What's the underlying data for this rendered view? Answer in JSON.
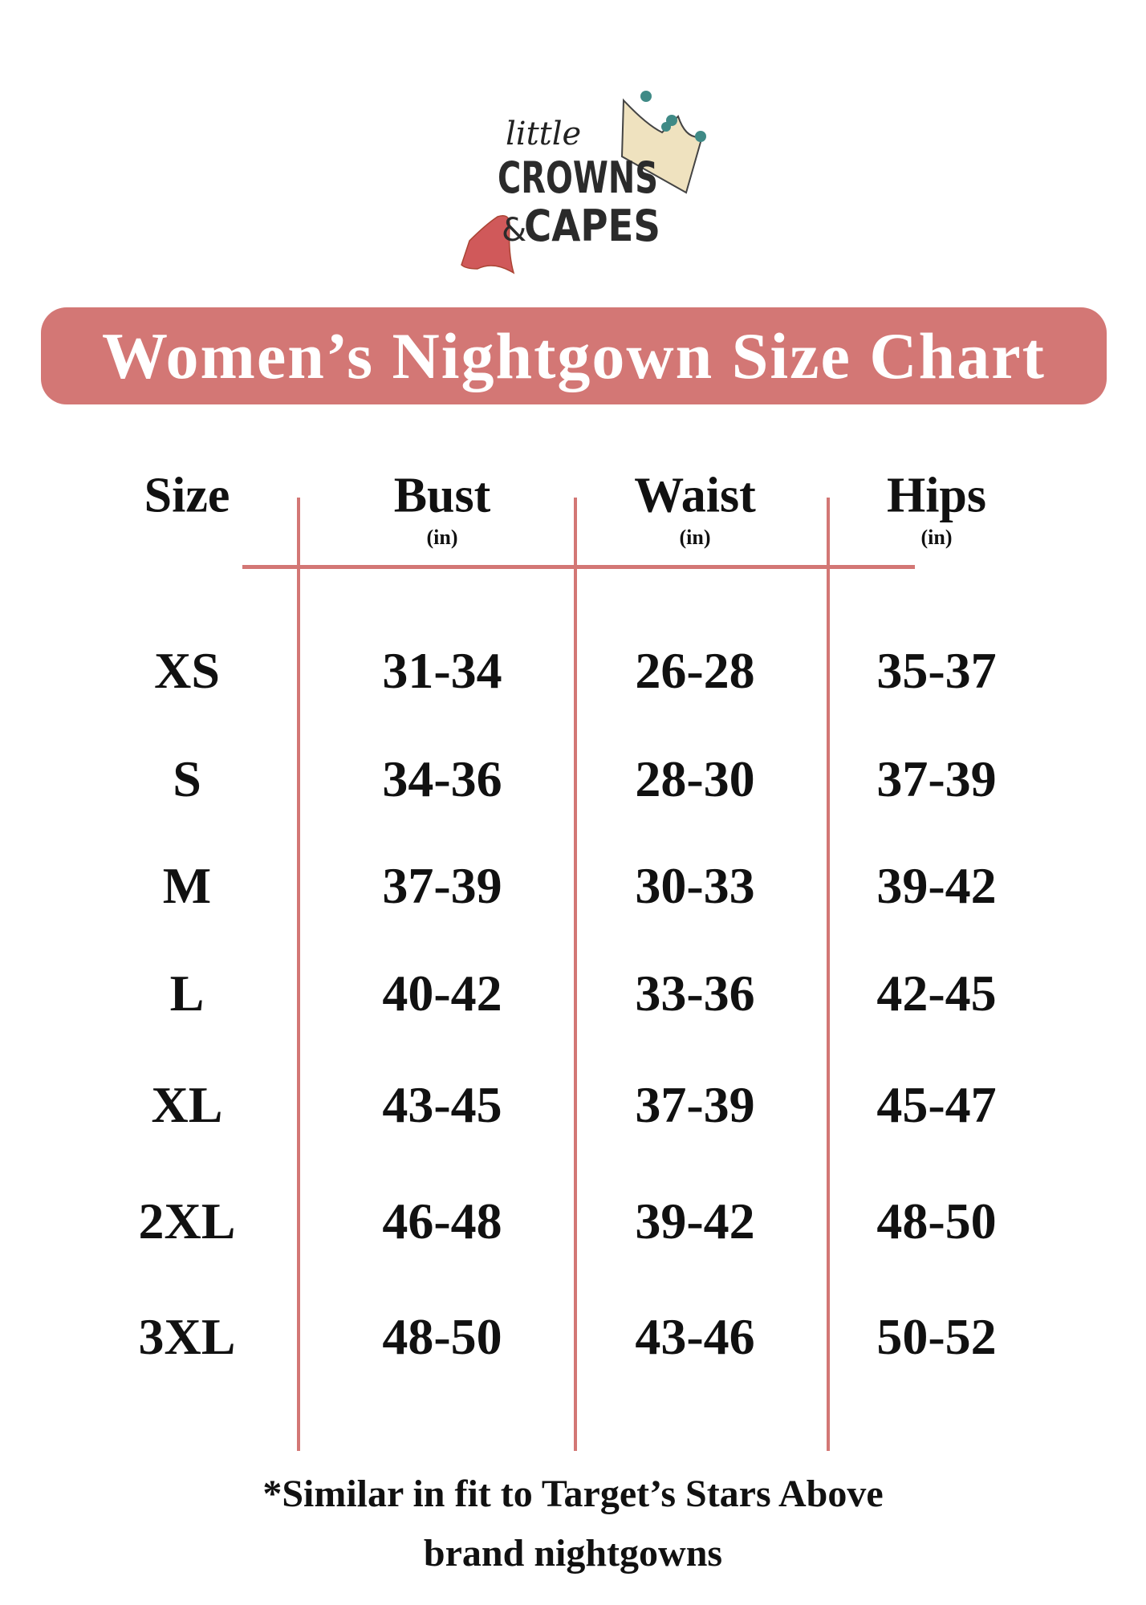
{
  "logo": {
    "text_top": "little",
    "text_mid": "CROWNS",
    "text_amp": "&",
    "text_bot": "CAPES"
  },
  "title": "Women’s Nightgown Size Chart",
  "colors": {
    "accent": "#d37775",
    "text": "#111111"
  },
  "table": {
    "headers": [
      {
        "label": "Size",
        "unit": ""
      },
      {
        "label": "Bust",
        "unit": "(in)"
      },
      {
        "label": "Waist",
        "unit": "(in)"
      },
      {
        "label": "Hips",
        "unit": "(in)"
      }
    ],
    "rows": [
      [
        "XS",
        "31-34",
        "26-28",
        "35-37"
      ],
      [
        "S",
        "34-36",
        "28-30",
        "37-39"
      ],
      [
        "M",
        "37-39",
        "30-33",
        "39-42"
      ],
      [
        "L",
        "40-42",
        "33-36",
        "42-45"
      ],
      [
        "XL",
        "43-45",
        "37-39",
        "45-47"
      ],
      [
        "2XL",
        "46-48",
        "39-42",
        "48-50"
      ],
      [
        "3XL",
        "48-50",
        "43-46",
        "50-52"
      ]
    ]
  },
  "footnote": {
    "line1": "*Similar in fit to Target’s Stars Above",
    "line2": "brand nightgowns"
  }
}
